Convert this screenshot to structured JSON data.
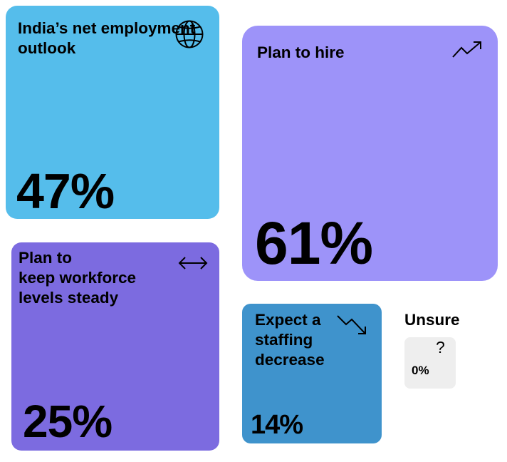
{
  "chart_data": {
    "type": "table",
    "title": "India’s net employment outlook",
    "overall": {
      "label": "India’s net employment outlook",
      "value": "47%",
      "icon": "globe-icon",
      "color": "#55BDEB"
    },
    "categories": [
      "Plan to hire",
      "Plan to keep workforce levels steady",
      "Expect a staffing decrease",
      "Unsure"
    ],
    "values": [
      61,
      25,
      14,
      0
    ],
    "items": [
      {
        "label": "Plan to hire",
        "value": "61%",
        "icon": "trend-up-icon",
        "color": "#9D93F9"
      },
      {
        "label": "Plan to\nkeep workforce\nlevels steady",
        "value": "25%",
        "icon": "double-arrow-icon",
        "color": "#7C6BE0"
      },
      {
        "label": "Expect a\nstaffing\ndecrease",
        "value": "14%",
        "icon": "trend-down-icon",
        "color": "#3F93CC"
      },
      {
        "label": "Unsure",
        "value": "0%",
        "icon": "question-mark-icon",
        "icon_glyph": "?",
        "color": "#EEEEEE"
      }
    ]
  }
}
